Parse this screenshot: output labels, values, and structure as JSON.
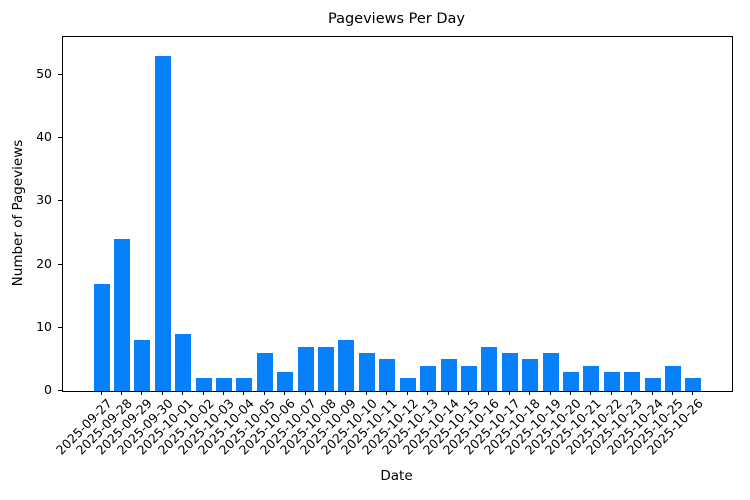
{
  "chart_data": {
    "type": "bar",
    "title": "Pageviews Per Day",
    "xlabel": "Date",
    "ylabel": "Number of Pageviews",
    "categories": [
      "2025-09-27",
      "2025-09-28",
      "2025-09-29",
      "2025-09-30",
      "2025-10-01",
      "2025-10-02",
      "2025-10-03",
      "2025-10-04",
      "2025-10-05",
      "2025-10-06",
      "2025-10-07",
      "2025-10-08",
      "2025-10-09",
      "2025-10-10",
      "2025-10-11",
      "2025-10-12",
      "2025-10-13",
      "2025-10-14",
      "2025-10-15",
      "2025-10-16",
      "2025-10-17",
      "2025-10-18",
      "2025-10-19",
      "2025-10-20",
      "2025-10-21",
      "2025-10-22",
      "2025-10-23",
      "2025-10-24",
      "2025-10-25",
      "2025-10-26"
    ],
    "values": [
      17,
      24,
      8,
      53,
      9,
      2,
      2,
      2,
      6,
      3,
      7,
      7,
      8,
      6,
      5,
      2,
      4,
      5,
      4,
      7,
      6,
      5,
      6,
      3,
      4,
      3,
      3,
      2,
      4,
      2
    ],
    "yticks": [
      0,
      10,
      20,
      30,
      40,
      50
    ],
    "ylim": [
      0,
      56
    ],
    "x_tick_rotation": 45,
    "grid": false,
    "legend": null,
    "colors": {
      "bar": "#0880fa",
      "text": "#000000",
      "spine": "#000000",
      "background": "#ffffff"
    }
  }
}
